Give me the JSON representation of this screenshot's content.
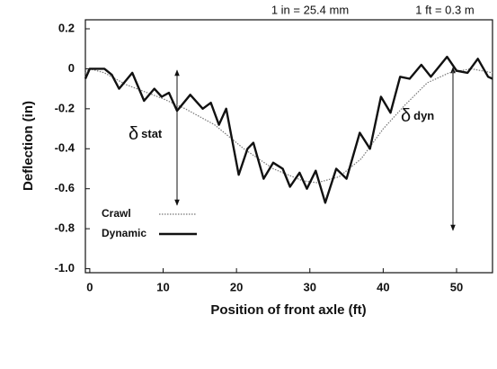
{
  "chart_data": {
    "type": "line",
    "notes": [
      "1 in = 25.4 mm",
      "1 ft = 0.3 m"
    ],
    "xlabel": "Position of front axle (ft)",
    "ylabel": "Deflection (in)",
    "xlim": [
      -0.6,
      54.9
    ],
    "ylim": [
      -1.02,
      0.245
    ],
    "xticks": [
      0,
      10,
      20,
      30,
      40,
      50
    ],
    "yticks": [
      0.2,
      0,
      -0.2,
      -0.4,
      -0.6,
      -0.8,
      {
        "value": -1,
        "label": "-1.0"
      }
    ],
    "legend": "lower left",
    "annotations": [
      {
        "symbol": "δ",
        "subscript": "stat"
      },
      {
        "symbol": "δ",
        "subscript": "dyn"
      }
    ],
    "series": [
      {
        "name": "Crawl",
        "color": "#777777",
        "style": "dotted",
        "x": [
          -0.6,
          0,
          2,
          5,
          10,
          13,
          17,
          21,
          25,
          29,
          31,
          34,
          37,
          40,
          43,
          46,
          49,
          52,
          54.9
        ],
        "values": [
          -0.02,
          0,
          -0.02,
          -0.08,
          -0.15,
          -0.2,
          -0.28,
          -0.4,
          -0.5,
          -0.56,
          -0.57,
          -0.54,
          -0.45,
          -0.3,
          -0.18,
          -0.07,
          -0.02,
          0,
          -0.02
        ]
      },
      {
        "name": "Dynamic",
        "color": "#111111",
        "style": "solid",
        "x": [
          -0.6,
          0,
          2,
          3,
          4,
          5.8,
          7.4,
          8.8,
          9.8,
          10.8,
          11.9,
          13.7,
          15.4,
          16.5,
          17.6,
          18.6,
          20.3,
          21.5,
          22.3,
          23.7,
          25,
          26.3,
          27.3,
          28.6,
          29.6,
          30.8,
          32.1,
          33.6,
          35,
          36.8,
          38.2,
          39.7,
          41,
          42.3,
          43.6,
          45.2,
          46.5,
          48.7,
          50,
          51.5,
          52.9,
          54.3,
          54.9
        ],
        "values": [
          -0.05,
          0,
          0,
          -0.03,
          -0.1,
          -0.02,
          -0.16,
          -0.1,
          -0.14,
          -0.12,
          -0.21,
          -0.13,
          -0.2,
          -0.17,
          -0.28,
          -0.2,
          -0.53,
          -0.4,
          -0.37,
          -0.55,
          -0.47,
          -0.5,
          -0.59,
          -0.52,
          -0.6,
          -0.51,
          -0.67,
          -0.5,
          -0.55,
          -0.32,
          -0.4,
          -0.14,
          -0.22,
          -0.04,
          -0.05,
          0.02,
          -0.04,
          0.06,
          -0.01,
          -0.02,
          0.05,
          -0.04,
          -0.05
        ]
      }
    ]
  }
}
